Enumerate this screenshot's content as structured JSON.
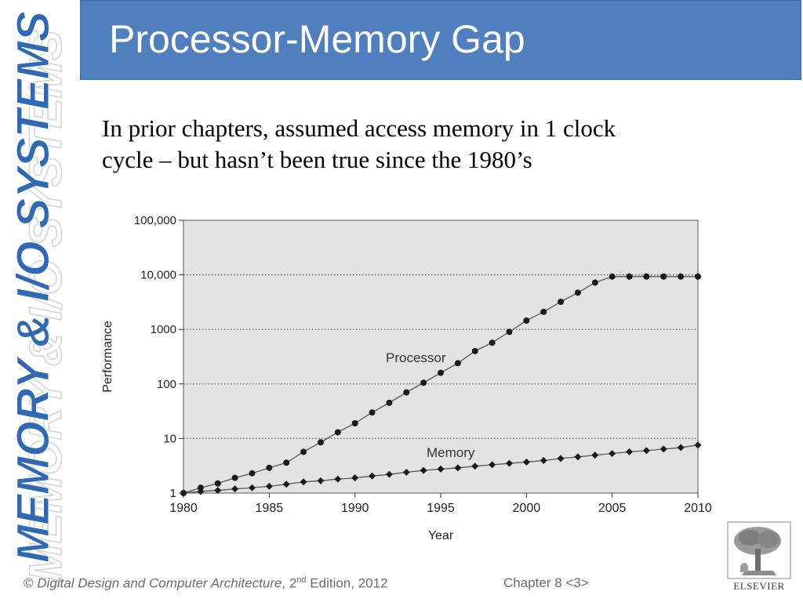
{
  "sidebar": {
    "text": "MEMORY & I/O SYSTEMS"
  },
  "header": {
    "title": "Processor-Memory Gap"
  },
  "body": {
    "line1": "In prior chapters, assumed access memory in 1 clock",
    "line2": "cycle – but hasn’t been true since the 1980’s"
  },
  "footer": {
    "copyright_symbol": "©",
    "book_title": "Digital Design and Computer Architecture",
    "edition_num": ", 2",
    "edition_sup": "nd",
    "edition_rest": " Edition, 2012",
    "chapter": "Chapter 8 <3>"
  },
  "logo": {
    "text": "ELSEVIER"
  },
  "chart_data": {
    "type": "line",
    "title": "",
    "xlabel": "Year",
    "ylabel": "Performance",
    "xlim": [
      1980,
      2010
    ],
    "ylim": [
      1,
      100000
    ],
    "yscale": "log",
    "x_ticks": [
      "1980",
      "1985",
      "1990",
      "1995",
      "2000",
      "2005",
      "2010"
    ],
    "y_ticks": [
      "1",
      "10",
      "100",
      "1000",
      "10,000",
      "100,000"
    ],
    "grid": "horizontal dotted",
    "x": [
      1980,
      1981,
      1982,
      1983,
      1984,
      1985,
      1986,
      1987,
      1988,
      1989,
      1990,
      1991,
      1992,
      1993,
      1994,
      1995,
      1996,
      1997,
      1998,
      1999,
      2000,
      2001,
      2002,
      2003,
      2004,
      2005,
      2006,
      2007,
      2008,
      2009,
      2010
    ],
    "series": [
      {
        "name": "Processor",
        "values": [
          1,
          1.25,
          1.5,
          1.9,
          2.3,
          2.9,
          3.6,
          5.7,
          8.5,
          13,
          19,
          30,
          45,
          70,
          105,
          160,
          240,
          400,
          570,
          900,
          1450,
          2100,
          3200,
          4700,
          7200,
          9300,
          9300,
          9300,
          9300,
          9300,
          9300
        ]
      },
      {
        "name": "Memory",
        "values": [
          1,
          1.07,
          1.12,
          1.19,
          1.25,
          1.33,
          1.45,
          1.6,
          1.68,
          1.8,
          1.9,
          2.05,
          2.2,
          2.4,
          2.6,
          2.75,
          2.9,
          3.1,
          3.3,
          3.5,
          3.7,
          3.95,
          4.3,
          4.6,
          4.95,
          5.3,
          5.7,
          6.0,
          6.4,
          6.8,
          7.6
        ]
      }
    ]
  }
}
